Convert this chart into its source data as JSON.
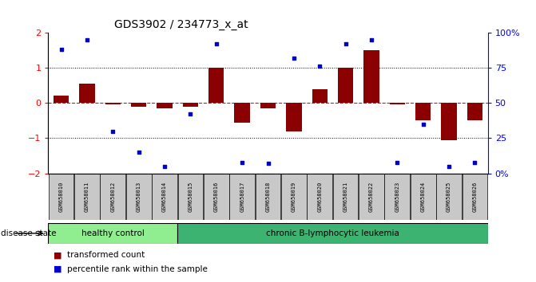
{
  "title": "GDS3902 / 234773_x_at",
  "samples": [
    "GSM658010",
    "GSM658011",
    "GSM658012",
    "GSM658013",
    "GSM658014",
    "GSM658015",
    "GSM658016",
    "GSM658017",
    "GSM658018",
    "GSM658019",
    "GSM658020",
    "GSM658021",
    "GSM658022",
    "GSM658023",
    "GSM658024",
    "GSM658025",
    "GSM658026"
  ],
  "transformed_count": [
    0.2,
    0.55,
    -0.05,
    -0.1,
    -0.15,
    -0.1,
    1.0,
    -0.55,
    -0.15,
    -0.8,
    0.4,
    1.0,
    1.5,
    -0.05,
    -0.5,
    -1.05,
    -0.5
  ],
  "percentile_rank": [
    88,
    95,
    30,
    15,
    5,
    42,
    92,
    8,
    7,
    82,
    76,
    92,
    95,
    8,
    35,
    5,
    8
  ],
  "healthy_control_count": 5,
  "bar_color": "#8B0000",
  "dot_color": "#0000CD",
  "healthy_bg": "#90EE90",
  "leukemia_bg": "#3CB371",
  "label_bg": "#C8C8C8",
  "ylim_left": [
    -2,
    2
  ],
  "ylim_right": [
    0,
    100
  ],
  "yticks_left": [
    -2,
    -1,
    0,
    1,
    2
  ],
  "yticks_right": [
    0,
    25,
    50,
    75,
    100
  ],
  "yticklabels_right": [
    "0%",
    "25",
    "50",
    "75",
    "100%"
  ],
  "legend_items": [
    "transformed count",
    "percentile rank within the sample"
  ]
}
